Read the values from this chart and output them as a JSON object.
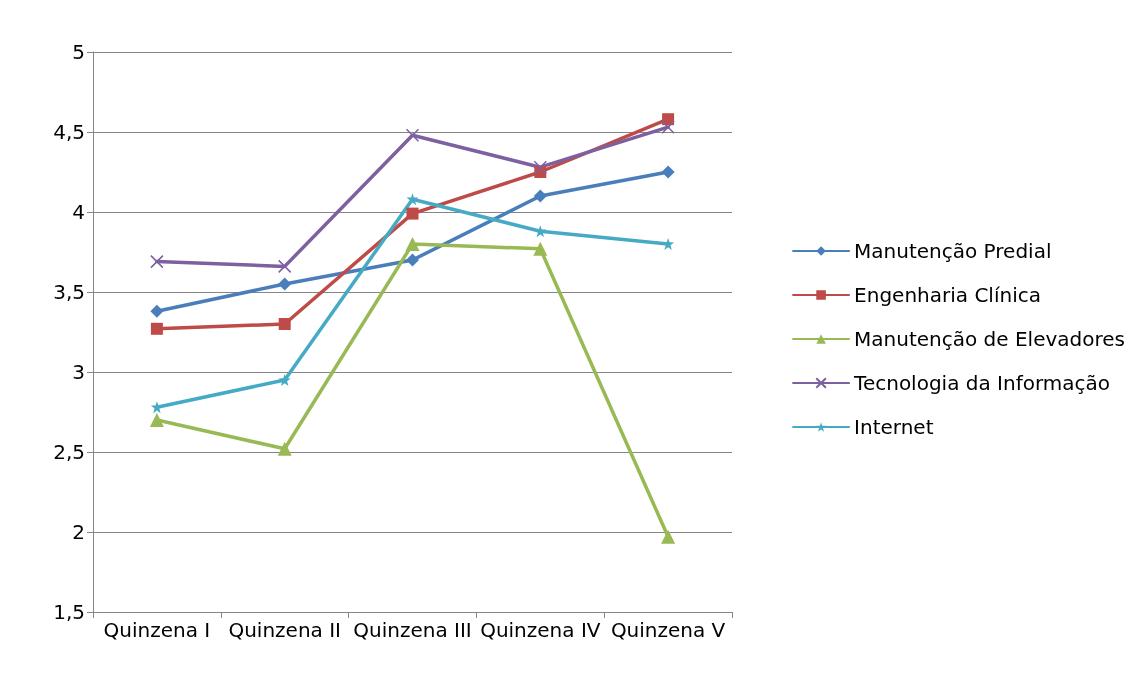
{
  "chart_data": {
    "type": "line",
    "categories": [
      "Quinzena I",
      "Quinzena II",
      "Quinzena III",
      "Quinzena IV",
      "Quinzena V"
    ],
    "series": [
      {
        "name": "Manutenção Predial",
        "color": "#4a7ebb",
        "marker": "diamond",
        "values": [
          3.38,
          3.55,
          3.7,
          4.1,
          4.25
        ]
      },
      {
        "name": "Engenharia Clínica",
        "color": "#be4b48",
        "marker": "square",
        "values": [
          3.27,
          3.3,
          3.99,
          4.25,
          4.58
        ]
      },
      {
        "name": "Manutenção de Elevadores",
        "color": "#98b954",
        "marker": "triangle",
        "values": [
          2.7,
          2.52,
          3.8,
          3.77,
          1.97
        ]
      },
      {
        "name": "Tecnologia da Informação",
        "color": "#7d60a0",
        "marker": "cross",
        "values": [
          3.69,
          3.66,
          4.48,
          4.28,
          4.53
        ]
      },
      {
        "name": "Internet",
        "color": "#46aac5",
        "marker": "star",
        "values": [
          2.78,
          2.95,
          4.08,
          3.88,
          3.8
        ]
      }
    ],
    "ylim": [
      1.5,
      5
    ],
    "yticks": [
      {
        "value": 1.5,
        "label": "1,5"
      },
      2,
      {
        "value": 2.5,
        "label": "2,5"
      },
      3,
      {
        "value": 3.5,
        "label": "3,5"
      },
      4,
      {
        "value": 4.5,
        "label": "4,5"
      },
      5
    ],
    "grid": "y",
    "legend": "right",
    "line_style": "solid"
  }
}
